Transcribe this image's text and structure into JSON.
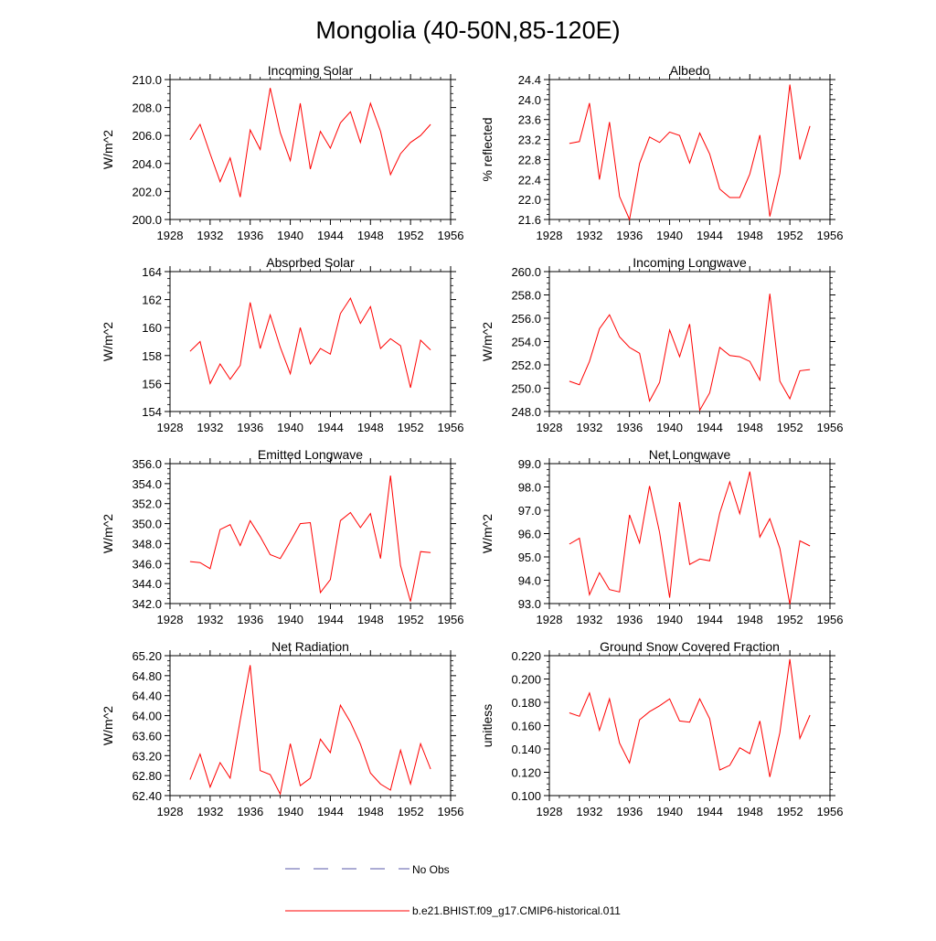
{
  "page_title": "Mongolia (40-50N,85-120E)",
  "legend": {
    "obs_label": "No Obs",
    "obs_color": "#5a5aa8",
    "model_label": "b.e21.BHIST.f09_g17.CMIP6-historical.011",
    "model_color": "#ff0000"
  },
  "chart_data": [
    {
      "type": "line",
      "title": "Incoming Solar",
      "xlabel": "",
      "ylabel": "W/m^2",
      "xlim": [
        1928,
        1956
      ],
      "ylim": [
        200,
        210
      ],
      "x_ticks": [
        "1928",
        "1932",
        "1936",
        "1940",
        "1944",
        "1948",
        "1952",
        "1956"
      ],
      "y_ticks": [
        "200.0",
        "202.0",
        "204.0",
        "206.0",
        "208.0",
        "210.0"
      ],
      "x": [
        1930,
        1931,
        1932,
        1933,
        1934,
        1935,
        1936,
        1937,
        1938,
        1939,
        1940,
        1941,
        1942,
        1943,
        1944,
        1945,
        1946,
        1947,
        1948,
        1949,
        1950,
        1951,
        1952,
        1953,
        1954
      ],
      "values": [
        205.7,
        206.8,
        204.7,
        202.7,
        204.4,
        201.6,
        206.4,
        205.0,
        209.4,
        206.2,
        204.2,
        208.3,
        203.6,
        206.3,
        205.1,
        206.9,
        207.7,
        205.5,
        208.3,
        206.3,
        203.2,
        204.7,
        205.5,
        206.0,
        206.8
      ]
    },
    {
      "type": "line",
      "title": "Albedo",
      "xlabel": "",
      "ylabel": "% reflected",
      "xlim": [
        1928,
        1956
      ],
      "ylim": [
        21.6,
        24.4
      ],
      "x_ticks": [
        "1928",
        "1932",
        "1936",
        "1940",
        "1944",
        "1948",
        "1952",
        "1956"
      ],
      "y_ticks": [
        "21.6",
        "22.0",
        "22.4",
        "22.8",
        "23.2",
        "23.6",
        "24.0",
        "24.4"
      ],
      "x": [
        1930,
        1931,
        1932,
        1933,
        1934,
        1935,
        1936,
        1937,
        1938,
        1939,
        1940,
        1941,
        1942,
        1943,
        1944,
        1945,
        1946,
        1947,
        1948,
        1949,
        1950,
        1951,
        1952,
        1953,
        1954
      ],
      "values": [
        23.12,
        23.16,
        23.93,
        22.4,
        23.55,
        22.06,
        21.6,
        22.72,
        23.25,
        23.14,
        23.35,
        23.28,
        22.73,
        23.33,
        22.91,
        22.21,
        22.04,
        22.04,
        22.51,
        23.29,
        21.66,
        22.52,
        24.3,
        22.8,
        23.47
      ]
    },
    {
      "type": "line",
      "title": "Absorbed Solar",
      "xlabel": "",
      "ylabel": "W/m^2",
      "xlim": [
        1928,
        1956
      ],
      "ylim": [
        154,
        164
      ],
      "x_ticks": [
        "1928",
        "1932",
        "1936",
        "1940",
        "1944",
        "1948",
        "1952",
        "1956"
      ],
      "y_ticks": [
        "154",
        "156",
        "158",
        "160",
        "162",
        "164"
      ],
      "x": [
        1930,
        1931,
        1932,
        1933,
        1934,
        1935,
        1936,
        1937,
        1938,
        1939,
        1940,
        1941,
        1942,
        1943,
        1944,
        1945,
        1946,
        1947,
        1948,
        1949,
        1950,
        1951,
        1952,
        1953,
        1954
      ],
      "values": [
        158.3,
        159.0,
        156.0,
        157.4,
        156.3,
        157.3,
        161.8,
        158.5,
        160.9,
        158.6,
        156.7,
        160.0,
        157.4,
        158.5,
        158.1,
        161.0,
        162.1,
        160.3,
        161.5,
        158.5,
        159.2,
        158.7,
        155.7,
        159.1,
        158.4
      ]
    },
    {
      "type": "line",
      "title": "Incoming Longwave",
      "xlabel": "",
      "ylabel": "W/m^2",
      "xlim": [
        1928,
        1956
      ],
      "ylim": [
        248,
        260
      ],
      "x_ticks": [
        "1928",
        "1932",
        "1936",
        "1940",
        "1944",
        "1948",
        "1952",
        "1956"
      ],
      "y_ticks": [
        "248.0",
        "250.0",
        "252.0",
        "254.0",
        "256.0",
        "258.0",
        "260.0"
      ],
      "x": [
        1930,
        1931,
        1932,
        1933,
        1934,
        1935,
        1936,
        1937,
        1938,
        1939,
        1940,
        1941,
        1942,
        1943,
        1944,
        1945,
        1946,
        1947,
        1948,
        1949,
        1950,
        1951,
        1952,
        1953,
        1954
      ],
      "values": [
        250.6,
        250.3,
        252.3,
        255.1,
        256.3,
        254.4,
        253.5,
        253.0,
        248.9,
        250.5,
        255.0,
        252.7,
        255.5,
        248.1,
        249.6,
        253.5,
        252.8,
        252.7,
        252.3,
        250.7,
        258.1,
        250.6,
        249.1,
        251.5,
        251.6
      ]
    },
    {
      "type": "line",
      "title": "Emitted Longwave",
      "xlabel": "",
      "ylabel": "W/m^2",
      "xlim": [
        1928,
        1956
      ],
      "ylim": [
        342,
        356
      ],
      "x_ticks": [
        "1928",
        "1932",
        "1936",
        "1940",
        "1944",
        "1948",
        "1952",
        "1956"
      ],
      "y_ticks": [
        "342.0",
        "344.0",
        "346.0",
        "348.0",
        "350.0",
        "352.0",
        "354.0",
        "356.0"
      ],
      "x": [
        1930,
        1931,
        1932,
        1933,
        1934,
        1935,
        1936,
        1937,
        1938,
        1939,
        1940,
        1941,
        1942,
        1943,
        1944,
        1945,
        1946,
        1947,
        1948,
        1949,
        1950,
        1951,
        1952,
        1953,
        1954
      ],
      "values": [
        346.2,
        346.1,
        345.5,
        349.4,
        349.9,
        347.8,
        350.3,
        348.7,
        346.9,
        346.5,
        348.2,
        350.0,
        350.1,
        343.1,
        344.4,
        350.3,
        351.1,
        349.6,
        351.0,
        346.5,
        354.8,
        345.8,
        342.2,
        347.2,
        347.1
      ]
    },
    {
      "type": "line",
      "title": "Net Longwave",
      "xlabel": "",
      "ylabel": "W/m^2",
      "xlim": [
        1928,
        1956
      ],
      "ylim": [
        93,
        99
      ],
      "x_ticks": [
        "1928",
        "1932",
        "1936",
        "1940",
        "1944",
        "1948",
        "1952",
        "1956"
      ],
      "y_ticks": [
        "93.0",
        "94.0",
        "95.0",
        "96.0",
        "97.0",
        "98.0",
        "99.0"
      ],
      "x": [
        1930,
        1931,
        1932,
        1933,
        1934,
        1935,
        1936,
        1937,
        1938,
        1939,
        1940,
        1941,
        1942,
        1943,
        1944,
        1945,
        1946,
        1947,
        1948,
        1949,
        1950,
        1951,
        1952,
        1953,
        1954
      ],
      "values": [
        95.55,
        95.8,
        93.38,
        94.32,
        93.6,
        93.5,
        96.8,
        95.6,
        98.04,
        96.05,
        93.25,
        97.35,
        94.68,
        94.91,
        94.83,
        96.88,
        98.22,
        96.85,
        98.66,
        95.85,
        96.64,
        95.36,
        92.97,
        95.69,
        95.47
      ]
    },
    {
      "type": "line",
      "title": "Net Radiation",
      "xlabel": "",
      "ylabel": "W/m^2",
      "xlim": [
        1928,
        1956
      ],
      "ylim": [
        62.4,
        65.2
      ],
      "x_ticks": [
        "1928",
        "1932",
        "1936",
        "1940",
        "1944",
        "1948",
        "1952",
        "1956"
      ],
      "y_ticks": [
        "62.40",
        "62.80",
        "63.20",
        "63.60",
        "64.00",
        "64.40",
        "64.80",
        "65.20"
      ],
      "x": [
        1930,
        1931,
        1932,
        1933,
        1934,
        1935,
        1936,
        1937,
        1938,
        1939,
        1940,
        1941,
        1942,
        1943,
        1944,
        1945,
        1946,
        1947,
        1948,
        1949,
        1950,
        1951,
        1952,
        1953,
        1954
      ],
      "values": [
        62.72,
        63.23,
        62.57,
        63.06,
        62.75,
        63.91,
        65.01,
        62.9,
        62.82,
        62.43,
        63.44,
        62.6,
        62.75,
        63.53,
        63.26,
        64.21,
        63.87,
        63.43,
        62.85,
        62.63,
        62.51,
        63.31,
        62.63,
        63.44,
        62.93
      ]
    },
    {
      "type": "line",
      "title": "Ground Snow Covered Fraction",
      "xlabel": "",
      "ylabel": "unitless",
      "xlim": [
        1928,
        1956
      ],
      "ylim": [
        0.1,
        0.22
      ],
      "x_ticks": [
        "1928",
        "1932",
        "1936",
        "1940",
        "1944",
        "1948",
        "1952",
        "1956"
      ],
      "y_ticks": [
        "0.100",
        "0.120",
        "0.140",
        "0.160",
        "0.180",
        "0.200",
        "0.220"
      ],
      "x": [
        1930,
        1931,
        1932,
        1933,
        1934,
        1935,
        1936,
        1937,
        1938,
        1939,
        1940,
        1941,
        1942,
        1943,
        1944,
        1945,
        1946,
        1947,
        1948,
        1949,
        1950,
        1951,
        1952,
        1953,
        1954
      ],
      "values": [
        0.171,
        0.168,
        0.188,
        0.156,
        0.183,
        0.145,
        0.128,
        0.165,
        0.172,
        0.177,
        0.183,
        0.164,
        0.163,
        0.183,
        0.166,
        0.122,
        0.126,
        0.141,
        0.136,
        0.164,
        0.116,
        0.154,
        0.217,
        0.149,
        0.169
      ]
    }
  ]
}
